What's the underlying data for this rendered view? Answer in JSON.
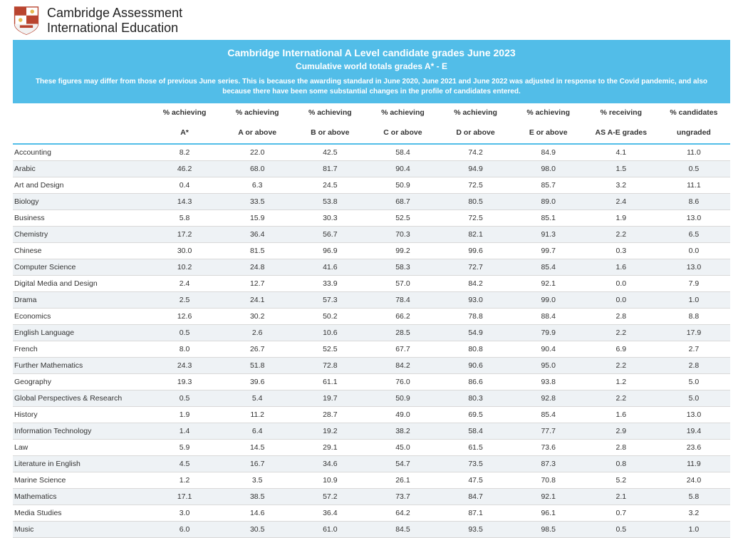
{
  "org": {
    "line1": "Cambridge Assessment",
    "line2": "International Education"
  },
  "banner": {
    "background_color": "#52bde8",
    "title": "Cambridge International A Level candidate grades June 2023",
    "subtitle": "Cumulative world totals grades A* - E",
    "note": "These figures may differ from those of previous June series. This is because the awarding standard in June 2020, June 2021 and June 2022 was adjusted in response to the Covid pandemic, and also because there have been some substantial changes in the profile of candidates entered."
  },
  "table": {
    "header_border_color": "#52bde8",
    "row_alt_color": "#eef2f5",
    "row_border_color": "#d9d9d9",
    "columns": [
      {
        "l1": "",
        "l2": ""
      },
      {
        "l1": "% achieving",
        "l2": "A*"
      },
      {
        "l1": "% achieving",
        "l2": "A or above"
      },
      {
        "l1": "% achieving",
        "l2": "B or above"
      },
      {
        "l1": "% achieving",
        "l2": "C or above"
      },
      {
        "l1": "% achieving",
        "l2": "D or above"
      },
      {
        "l1": "% achieving",
        "l2": "E or above"
      },
      {
        "l1": "% receiving",
        "l2": "AS A-E grades"
      },
      {
        "l1": "% candidates",
        "l2": "ungraded"
      }
    ],
    "rows": [
      {
        "subject": "Accounting",
        "v": [
          "8.2",
          "22.0",
          "42.5",
          "58.4",
          "74.2",
          "84.9",
          "4.1",
          "11.0"
        ]
      },
      {
        "subject": "Arabic",
        "v": [
          "46.2",
          "68.0",
          "81.7",
          "90.4",
          "94.9",
          "98.0",
          "1.5",
          "0.5"
        ]
      },
      {
        "subject": "Art and Design",
        "v": [
          "0.4",
          "6.3",
          "24.5",
          "50.9",
          "72.5",
          "85.7",
          "3.2",
          "11.1"
        ]
      },
      {
        "subject": "Biology",
        "v": [
          "14.3",
          "33.5",
          "53.8",
          "68.7",
          "80.5",
          "89.0",
          "2.4",
          "8.6"
        ]
      },
      {
        "subject": "Business",
        "v": [
          "5.8",
          "15.9",
          "30.3",
          "52.5",
          "72.5",
          "85.1",
          "1.9",
          "13.0"
        ]
      },
      {
        "subject": "Chemistry",
        "v": [
          "17.2",
          "36.4",
          "56.7",
          "70.3",
          "82.1",
          "91.3",
          "2.2",
          "6.5"
        ]
      },
      {
        "subject": "Chinese",
        "v": [
          "30.0",
          "81.5",
          "96.9",
          "99.2",
          "99.6",
          "99.7",
          "0.3",
          "0.0"
        ]
      },
      {
        "subject": "Computer Science",
        "v": [
          "10.2",
          "24.8",
          "41.6",
          "58.3",
          "72.7",
          "85.4",
          "1.6",
          "13.0"
        ]
      },
      {
        "subject": "Digital Media and Design",
        "v": [
          "2.4",
          "12.7",
          "33.9",
          "57.0",
          "84.2",
          "92.1",
          "0.0",
          "7.9"
        ]
      },
      {
        "subject": "Drama",
        "v": [
          "2.5",
          "24.1",
          "57.3",
          "78.4",
          "93.0",
          "99.0",
          "0.0",
          "1.0"
        ]
      },
      {
        "subject": "Economics",
        "v": [
          "12.6",
          "30.2",
          "50.2",
          "66.2",
          "78.8",
          "88.4",
          "2.8",
          "8.8"
        ]
      },
      {
        "subject": "English Language",
        "v": [
          "0.5",
          "2.6",
          "10.6",
          "28.5",
          "54.9",
          "79.9",
          "2.2",
          "17.9"
        ]
      },
      {
        "subject": "French",
        "v": [
          "8.0",
          "26.7",
          "52.5",
          "67.7",
          "80.8",
          "90.4",
          "6.9",
          "2.7"
        ]
      },
      {
        "subject": "Further Mathematics",
        "v": [
          "24.3",
          "51.8",
          "72.8",
          "84.2",
          "90.6",
          "95.0",
          "2.2",
          "2.8"
        ]
      },
      {
        "subject": "Geography",
        "v": [
          "19.3",
          "39.6",
          "61.1",
          "76.0",
          "86.6",
          "93.8",
          "1.2",
          "5.0"
        ]
      },
      {
        "subject": "Global Perspectives & Research",
        "v": [
          "0.5",
          "5.4",
          "19.7",
          "50.9",
          "80.3",
          "92.8",
          "2.2",
          "5.0"
        ]
      },
      {
        "subject": "History",
        "v": [
          "1.9",
          "11.2",
          "28.7",
          "49.0",
          "69.5",
          "85.4",
          "1.6",
          "13.0"
        ]
      },
      {
        "subject": "Information Technology",
        "v": [
          "1.4",
          "6.4",
          "19.2",
          "38.2",
          "58.4",
          "77.7",
          "2.9",
          "19.4"
        ]
      },
      {
        "subject": "Law",
        "v": [
          "5.9",
          "14.5",
          "29.1",
          "45.0",
          "61.5",
          "73.6",
          "2.8",
          "23.6"
        ]
      },
      {
        "subject": "Literature in English",
        "v": [
          "4.5",
          "16.7",
          "34.6",
          "54.7",
          "73.5",
          "87.3",
          "0.8",
          "11.9"
        ]
      },
      {
        "subject": "Marine Science",
        "v": [
          "1.2",
          "3.5",
          "10.9",
          "26.1",
          "47.5",
          "70.8",
          "5.2",
          "24.0"
        ]
      },
      {
        "subject": "Mathematics",
        "v": [
          "17.1",
          "38.5",
          "57.2",
          "73.7",
          "84.7",
          "92.1",
          "2.1",
          "5.8"
        ]
      },
      {
        "subject": "Media Studies",
        "v": [
          "3.0",
          "14.6",
          "36.4",
          "64.2",
          "87.1",
          "96.1",
          "0.7",
          "3.2"
        ]
      },
      {
        "subject": "Music",
        "v": [
          "6.0",
          "30.5",
          "61.0",
          "84.5",
          "93.5",
          "98.5",
          "0.5",
          "1.0"
        ]
      }
    ]
  }
}
